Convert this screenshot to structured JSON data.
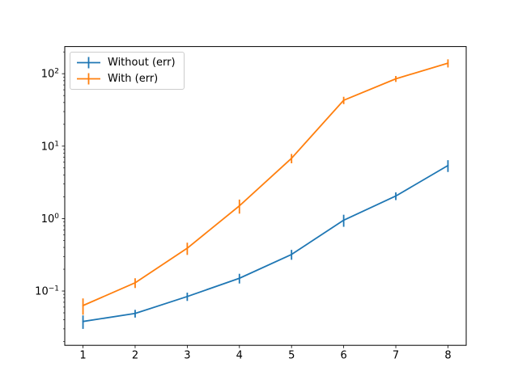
{
  "chart_data": {
    "type": "line",
    "x": [
      1,
      2,
      3,
      4,
      5,
      6,
      7,
      8
    ],
    "series": [
      {
        "name": "Without (err)",
        "color": "#1f77b4",
        "values": [
          0.038,
          0.049,
          0.084,
          0.15,
          0.32,
          0.95,
          2.05,
          5.4
        ],
        "yerr": [
          0.008,
          0.006,
          0.011,
          0.023,
          0.05,
          0.18,
          0.25,
          1.0
        ]
      },
      {
        "name": "With (err)",
        "color": "#ff7f0e",
        "values": [
          0.063,
          0.13,
          0.39,
          1.5,
          6.8,
          43,
          85,
          140
        ],
        "yerr": [
          0.016,
          0.02,
          0.075,
          0.33,
          1.0,
          5,
          8,
          18
        ]
      }
    ],
    "x_ticks": [
      1,
      2,
      3,
      4,
      5,
      6,
      7,
      8
    ],
    "y_scale": "log",
    "y_tick_exponents": [
      -1,
      0,
      1,
      2
    ],
    "xlim": [
      0.65,
      8.35
    ],
    "ylim": [
      0.0178,
      237
    ],
    "grid": false,
    "legend_position": "upper left",
    "background": "#ffffff",
    "axis_color": "#000000",
    "tick_label_color": "#000000"
  }
}
